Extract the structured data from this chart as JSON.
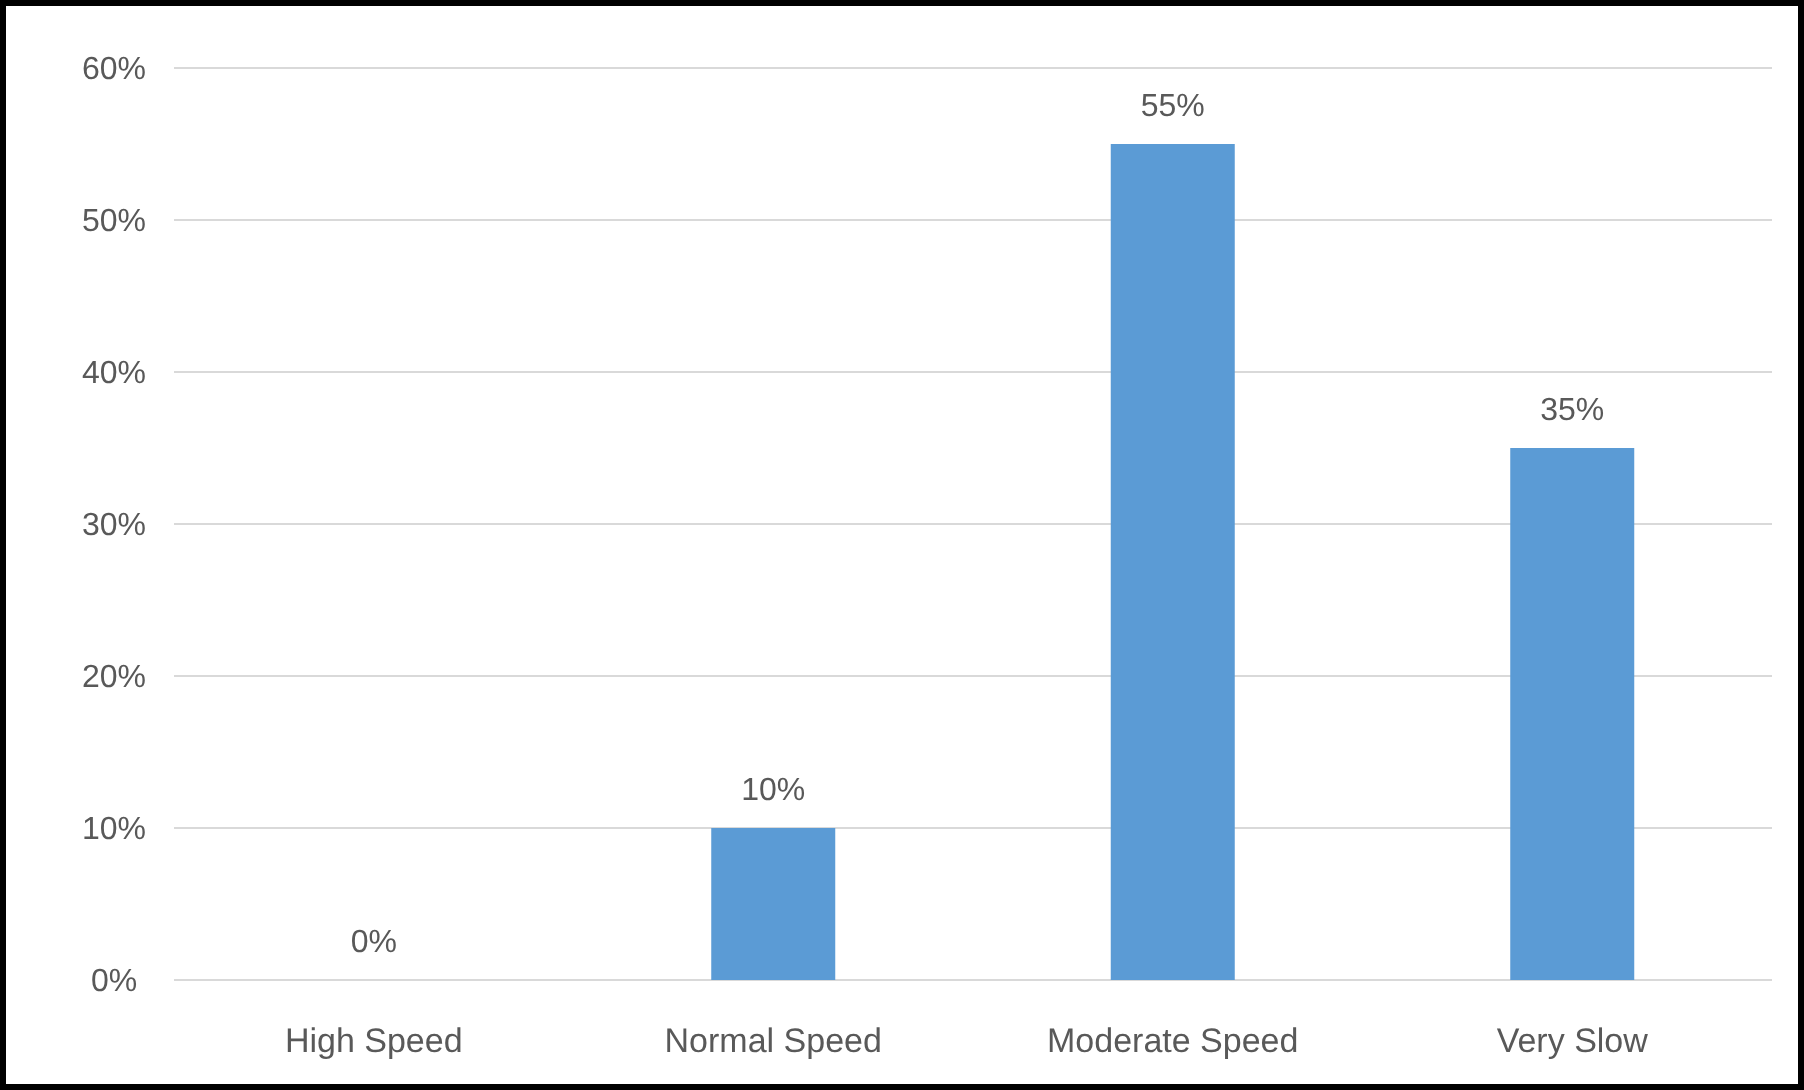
{
  "chart_data": {
    "type": "bar",
    "categories": [
      "High Speed",
      "Normal Speed",
      "Moderate Speed",
      "Very Slow"
    ],
    "values": [
      0,
      10,
      55,
      35
    ],
    "color": "#5b9bd5",
    "value_labels": [
      "0%",
      "10%",
      "55%",
      "35%"
    ],
    "ylim": [
      0,
      60
    ],
    "yticks": [
      {
        "value": 0,
        "label": "0%"
      },
      {
        "value": 10,
        "label": "10%"
      },
      {
        "value": 20,
        "label": "20%"
      },
      {
        "value": 30,
        "label": "30%"
      },
      {
        "value": 40,
        "label": "40%"
      },
      {
        "value": 50,
        "label": "50%"
      },
      {
        "value": 60,
        "label": "60%"
      }
    ],
    "grid": "y"
  }
}
